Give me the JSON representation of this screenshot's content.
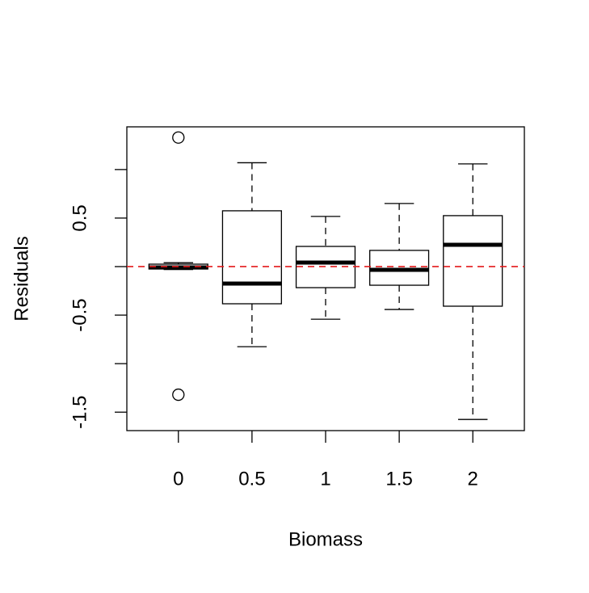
{
  "chart_data": {
    "type": "box",
    "xlabel": "Biomass",
    "ylabel": "Residuals",
    "categories": [
      "0",
      "0.5",
      "1",
      "1.5",
      "2"
    ],
    "boxes": [
      {
        "min": -0.03,
        "q1": -0.025,
        "median": -0.008,
        "q3": 0.025,
        "max": 0.04,
        "outliers": [
          1.33,
          -1.32
        ]
      },
      {
        "min": -0.825,
        "q1": -0.383,
        "median": -0.175,
        "q3": 0.575,
        "max": 1.07,
        "outliers": []
      },
      {
        "min": -0.542,
        "q1": -0.217,
        "median": 0.042,
        "q3": 0.208,
        "max": 0.517,
        "outliers": []
      },
      {
        "min": -0.442,
        "q1": -0.192,
        "median": -0.033,
        "q3": 0.167,
        "max": 0.65,
        "outliers": []
      },
      {
        "min": -1.575,
        "q1": -0.408,
        "median": 0.225,
        "q3": 0.525,
        "max": 1.058,
        "outliers": []
      }
    ],
    "ylim": [
      -1.69,
      1.44
    ],
    "yticks": [
      -1.5,
      -0.5,
      0.5
    ],
    "yminor_ticks": [
      -1,
      0,
      1
    ],
    "hline": 0,
    "hline_color": "#e41a1c"
  }
}
